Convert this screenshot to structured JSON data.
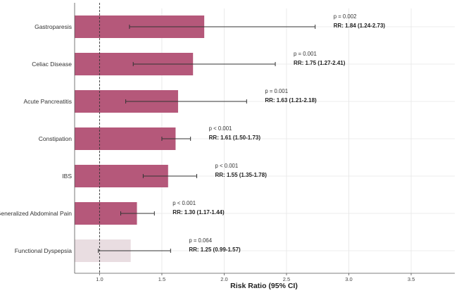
{
  "chart_data": {
    "type": "bar",
    "orientation": "horizontal",
    "xlabel": "Risk Ratio (95% CI)",
    "xlim": [
      0.8,
      3.85
    ],
    "xticks": [
      1.0,
      1.5,
      2.0,
      2.5,
      3.0,
      3.5
    ],
    "xtick_labels": [
      "1.0",
      "1.5",
      "2.0",
      "2.5",
      "3.0",
      "3.5"
    ],
    "reference_line": 1.0,
    "bar_base": 0.8,
    "grid": true,
    "colors": {
      "significant": "#b5587a",
      "non_significant": "#e9dde1",
      "whisker": "#333333",
      "grid": "#e6e6e6",
      "axis": "#555555"
    },
    "rows": [
      {
        "category": "Gastroparesis",
        "rr": 1.84,
        "ci": [
          1.24,
          2.73
        ],
        "significant": true,
        "p_text": "p = 0.002",
        "rr_text": "RR: 1.84 (1.24-2.73)"
      },
      {
        "category": "Celiac Disease",
        "rr": 1.75,
        "ci": [
          1.27,
          2.41
        ],
        "significant": true,
        "p_text": "p = 0.001",
        "rr_text": "RR: 1.75 (1.27-2.41)"
      },
      {
        "category": "Acute Pancreatitis",
        "rr": 1.63,
        "ci": [
          1.21,
          2.18
        ],
        "significant": true,
        "p_text": "p = 0.001",
        "rr_text": "RR: 1.63 (1.21-2.18)"
      },
      {
        "category": "Constipation",
        "rr": 1.61,
        "ci": [
          1.5,
          1.73
        ],
        "significant": true,
        "p_text": "p < 0.001",
        "rr_text": "RR: 1.61 (1.50-1.73)"
      },
      {
        "category": "IBS",
        "rr": 1.55,
        "ci": [
          1.35,
          1.78
        ],
        "significant": true,
        "p_text": "p < 0.001",
        "rr_text": "RR: 1.55 (1.35-1.78)"
      },
      {
        "category": "Generalized Abdominal Pain",
        "rr": 1.3,
        "ci": [
          1.17,
          1.44
        ],
        "significant": true,
        "p_text": "p < 0.001",
        "rr_text": "RR: 1.30 (1.17-1.44)"
      },
      {
        "category": "Functional Dyspepsia",
        "rr": 1.25,
        "ci": [
          0.99,
          1.57
        ],
        "significant": false,
        "p_text": "p = 0.064",
        "rr_text": "RR: 1.25 (0.99-1.57)"
      }
    ]
  }
}
